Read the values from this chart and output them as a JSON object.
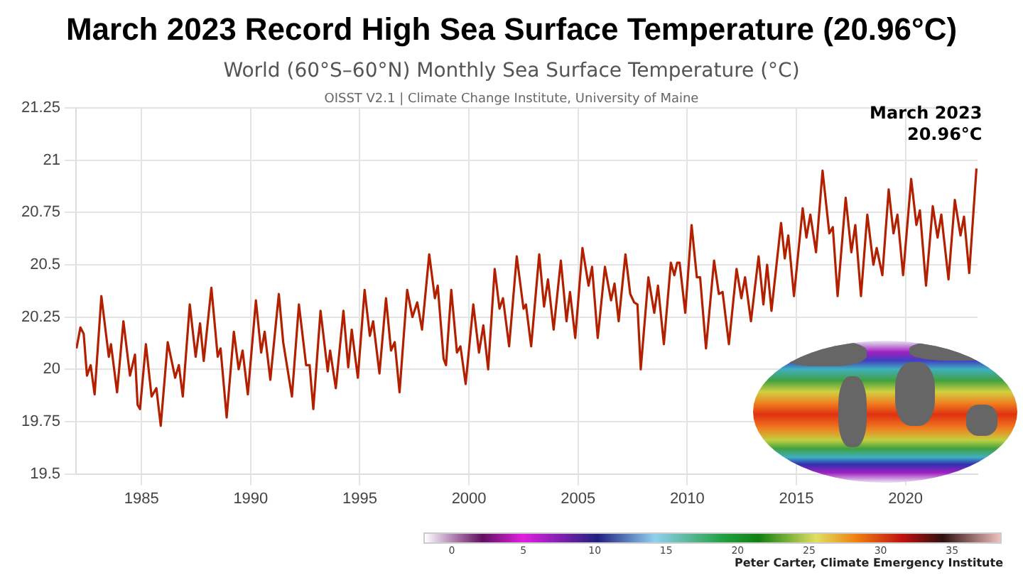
{
  "chart_data": {
    "type": "line",
    "title": "March 2023 Record High Sea Surface Temperature (20.96°C)",
    "subtitle": "World (60°S–60°N) Monthly Sea Surface Temperature (°C)",
    "annotations": [
      "OISST V2.1 | Climate Change Institute, University of Maine",
      "Peter Carter, Climate Emergency Institute",
      {
        "text": "March 2023\n20.96°C",
        "x": 2023.25,
        "y": 20.96
      },
      "0",
      "5",
      "10",
      "15",
      "20",
      "25",
      "30",
      "35"
    ],
    "xlim": [
      1982,
      2023.3
    ],
    "xticks": [
      1985,
      1990,
      1995,
      2000,
      2005,
      2010,
      2015,
      2020
    ],
    "ylim": [
      19.5,
      21.25
    ],
    "yticks": [
      19.5,
      19.75,
      20,
      20.25,
      20.5,
      20.75,
      21,
      21.25
    ],
    "grid": true,
    "legend": false,
    "marker": "none",
    "line_style": "solid",
    "series": [
      {
        "color": "#b22000",
        "x": [
          1982.02,
          1982.2,
          1982.35,
          1982.5,
          1982.67,
          1982.85,
          1983.16,
          1983.5,
          1983.6,
          1983.88,
          1984.17,
          1984.47,
          1984.7,
          1984.82,
          1984.93,
          1985.2,
          1985.46,
          1985.68,
          1985.88,
          1986.2,
          1986.54,
          1986.71,
          1986.89,
          1987.21,
          1987.48,
          1987.68,
          1987.85,
          1988.2,
          1988.49,
          1988.62,
          1988.9,
          1989.23,
          1989.45,
          1989.63,
          1989.87,
          1990.24,
          1990.48,
          1990.64,
          1990.9,
          1991.29,
          1991.49,
          1991.89,
          1992.21,
          1992.54,
          1992.7,
          1992.87,
          1993.2,
          1993.53,
          1993.64,
          1993.9,
          1994.25,
          1994.47,
          1994.63,
          1994.91,
          1995.22,
          1995.46,
          1995.61,
          1995.9,
          1996.2,
          1996.43,
          1996.6,
          1996.82,
          1997.17,
          1997.41,
          1997.63,
          1997.85,
          1998.18,
          1998.44,
          1998.57,
          1998.84,
          1998.95,
          1999.19,
          1999.45,
          1999.61,
          1999.85,
          2000.2,
          2000.46,
          2000.66,
          2000.88,
          2001.18,
          2001.4,
          2001.56,
          2001.84,
          2002.19,
          2002.5,
          2002.61,
          2002.85,
          2003.22,
          2003.44,
          2003.62,
          2003.88,
          2004.21,
          2004.47,
          2004.63,
          2004.87,
          2005.2,
          2005.48,
          2005.64,
          2005.9,
          2006.23,
          2006.51,
          2006.67,
          2006.86,
          2007.17,
          2007.39,
          2007.57,
          2007.72,
          2007.87,
          2008.22,
          2008.49,
          2008.66,
          2008.93,
          2009.25,
          2009.41,
          2009.54,
          2009.65,
          2009.91,
          2010.2,
          2010.44,
          2010.59,
          2010.86,
          2011.23,
          2011.45,
          2011.62,
          2011.91,
          2012.26,
          2012.48,
          2012.65,
          2012.92,
          2013.27,
          2013.49,
          2013.66,
          2013.86,
          2014.3,
          2014.47,
          2014.63,
          2014.89,
          2015.29,
          2015.46,
          2015.64,
          2015.9,
          2016.2,
          2016.51,
          2016.67,
          2016.89,
          2017.26,
          2017.52,
          2017.7,
          2017.96,
          2018.25,
          2018.53,
          2018.68,
          2018.94,
          2019.23,
          2019.45,
          2019.63,
          2019.89,
          2020.26,
          2020.5,
          2020.66,
          2020.94,
          2021.25,
          2021.47,
          2021.64,
          2021.97,
          2022.26,
          2022.52,
          2022.68,
          2022.92,
          2023.25
        ],
        "values": [
          20.1,
          20.2,
          20.17,
          19.97,
          20.02,
          19.88,
          20.35,
          20.06,
          20.12,
          19.89,
          20.23,
          19.97,
          20.07,
          19.83,
          19.81,
          20.12,
          19.87,
          19.91,
          19.73,
          20.13,
          19.96,
          20.02,
          19.87,
          20.31,
          20.06,
          20.22,
          20.04,
          20.39,
          20.06,
          20.1,
          19.77,
          20.18,
          20,
          20.09,
          19.88,
          20.33,
          20.08,
          20.18,
          19.95,
          20.36,
          20.13,
          19.87,
          20.31,
          20.02,
          20.02,
          19.81,
          20.28,
          19.99,
          20.09,
          19.91,
          20.28,
          20.01,
          20.19,
          19.96,
          20.38,
          20.16,
          20.23,
          19.98,
          20.34,
          20.09,
          20.13,
          19.89,
          20.38,
          20.25,
          20.32,
          20.19,
          20.55,
          20.34,
          20.4,
          20.05,
          20.02,
          20.38,
          20.08,
          20.11,
          19.93,
          20.31,
          20.08,
          20.21,
          20,
          20.48,
          20.29,
          20.34,
          20.11,
          20.54,
          20.29,
          20.31,
          20.11,
          20.55,
          20.3,
          20.43,
          20.19,
          20.52,
          20.23,
          20.37,
          20.15,
          20.58,
          20.4,
          20.49,
          20.15,
          20.49,
          20.33,
          20.41,
          20.23,
          20.55,
          20.36,
          20.32,
          20.31,
          20,
          20.44,
          20.27,
          20.4,
          20.12,
          20.51,
          20.45,
          20.51,
          20.51,
          20.27,
          20.69,
          20.44,
          20.44,
          20.1,
          20.52,
          20.36,
          20.37,
          20.12,
          20.48,
          20.34,
          20.44,
          20.23,
          20.54,
          20.31,
          20.5,
          20.28,
          20.7,
          20.53,
          20.64,
          20.35,
          20.77,
          20.63,
          20.74,
          20.56,
          20.95,
          20.65,
          20.68,
          20.35,
          20.82,
          20.56,
          20.69,
          20.35,
          20.74,
          20.5,
          20.58,
          20.45,
          20.86,
          20.65,
          20.74,
          20.45,
          20.91,
          20.69,
          20.76,
          20.4,
          20.78,
          20.63,
          20.74,
          20.43,
          20.81,
          20.64,
          20.73,
          20.46,
          20.96
        ]
      }
    ]
  }
}
